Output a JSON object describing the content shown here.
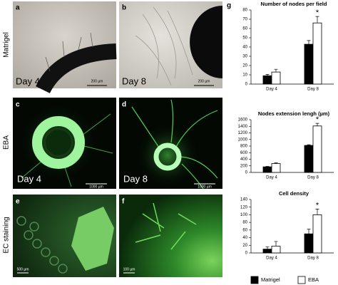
{
  "row_labels": [
    "Matrigel",
    "EBA",
    "EC staining"
  ],
  "panels": [
    {
      "letter": "a",
      "day": "Day 4",
      "scale": "200 µm"
    },
    {
      "letter": "b",
      "day": "Day 8",
      "scale": "200 µm"
    },
    {
      "letter": "c",
      "day": "Day 4",
      "scale": "1000 µm"
    },
    {
      "letter": "d",
      "day": "Day 8",
      "scale": "1000 µm"
    },
    {
      "letter": "e",
      "scale": "500 µm"
    },
    {
      "letter": "f",
      "scale": "100 µm"
    }
  ],
  "panel_g": "g",
  "chart_data": [
    {
      "type": "bar",
      "title": "Number of nodes per field",
      "categories": [
        "Day 4",
        "Day 8"
      ],
      "series": [
        {
          "name": "Matrigel",
          "color": "#000000",
          "values": [
            9,
            43
          ],
          "errors": [
            1.5,
            4
          ]
        },
        {
          "name": "EBA",
          "color": "#ffffff",
          "values": [
            13,
            66
          ],
          "errors": [
            3,
            7
          ]
        }
      ],
      "ylim": [
        0,
        80
      ],
      "yticks": [
        0,
        10,
        20,
        30,
        40,
        50,
        60,
        70,
        80
      ],
      "annotation": "*"
    },
    {
      "type": "bar",
      "title": "Nodes extension lengh (µm)",
      "categories": [
        "Day 4",
        "Day 8"
      ],
      "series": [
        {
          "name": "Matrigel",
          "color": "#000000",
          "values": [
            170,
            820
          ],
          "errors": [
            15,
            20
          ]
        },
        {
          "name": "EBA",
          "color": "#ffffff",
          "values": [
            270,
            1410
          ],
          "errors": [
            20,
            80
          ]
        }
      ],
      "ylim": [
        0,
        1600
      ],
      "yticks": [
        0,
        200,
        400,
        600,
        800,
        1000,
        1200,
        1400,
        1600
      ],
      "annotation": "*"
    },
    {
      "type": "bar",
      "title": "Cell density",
      "categories": [
        "Day 4",
        "Day 8"
      ],
      "series": [
        {
          "name": "Matrigel",
          "color": "#000000",
          "values": [
            10,
            50
          ],
          "errors": [
            6,
            12
          ]
        },
        {
          "name": "EBA",
          "color": "#ffffff",
          "values": [
            18,
            100
          ],
          "errors": [
            12,
            15
          ]
        }
      ],
      "ylim": [
        0,
        140
      ],
      "yticks": [
        0,
        20,
        40,
        60,
        80,
        100,
        120,
        140
      ],
      "annotation": "*"
    }
  ]
}
